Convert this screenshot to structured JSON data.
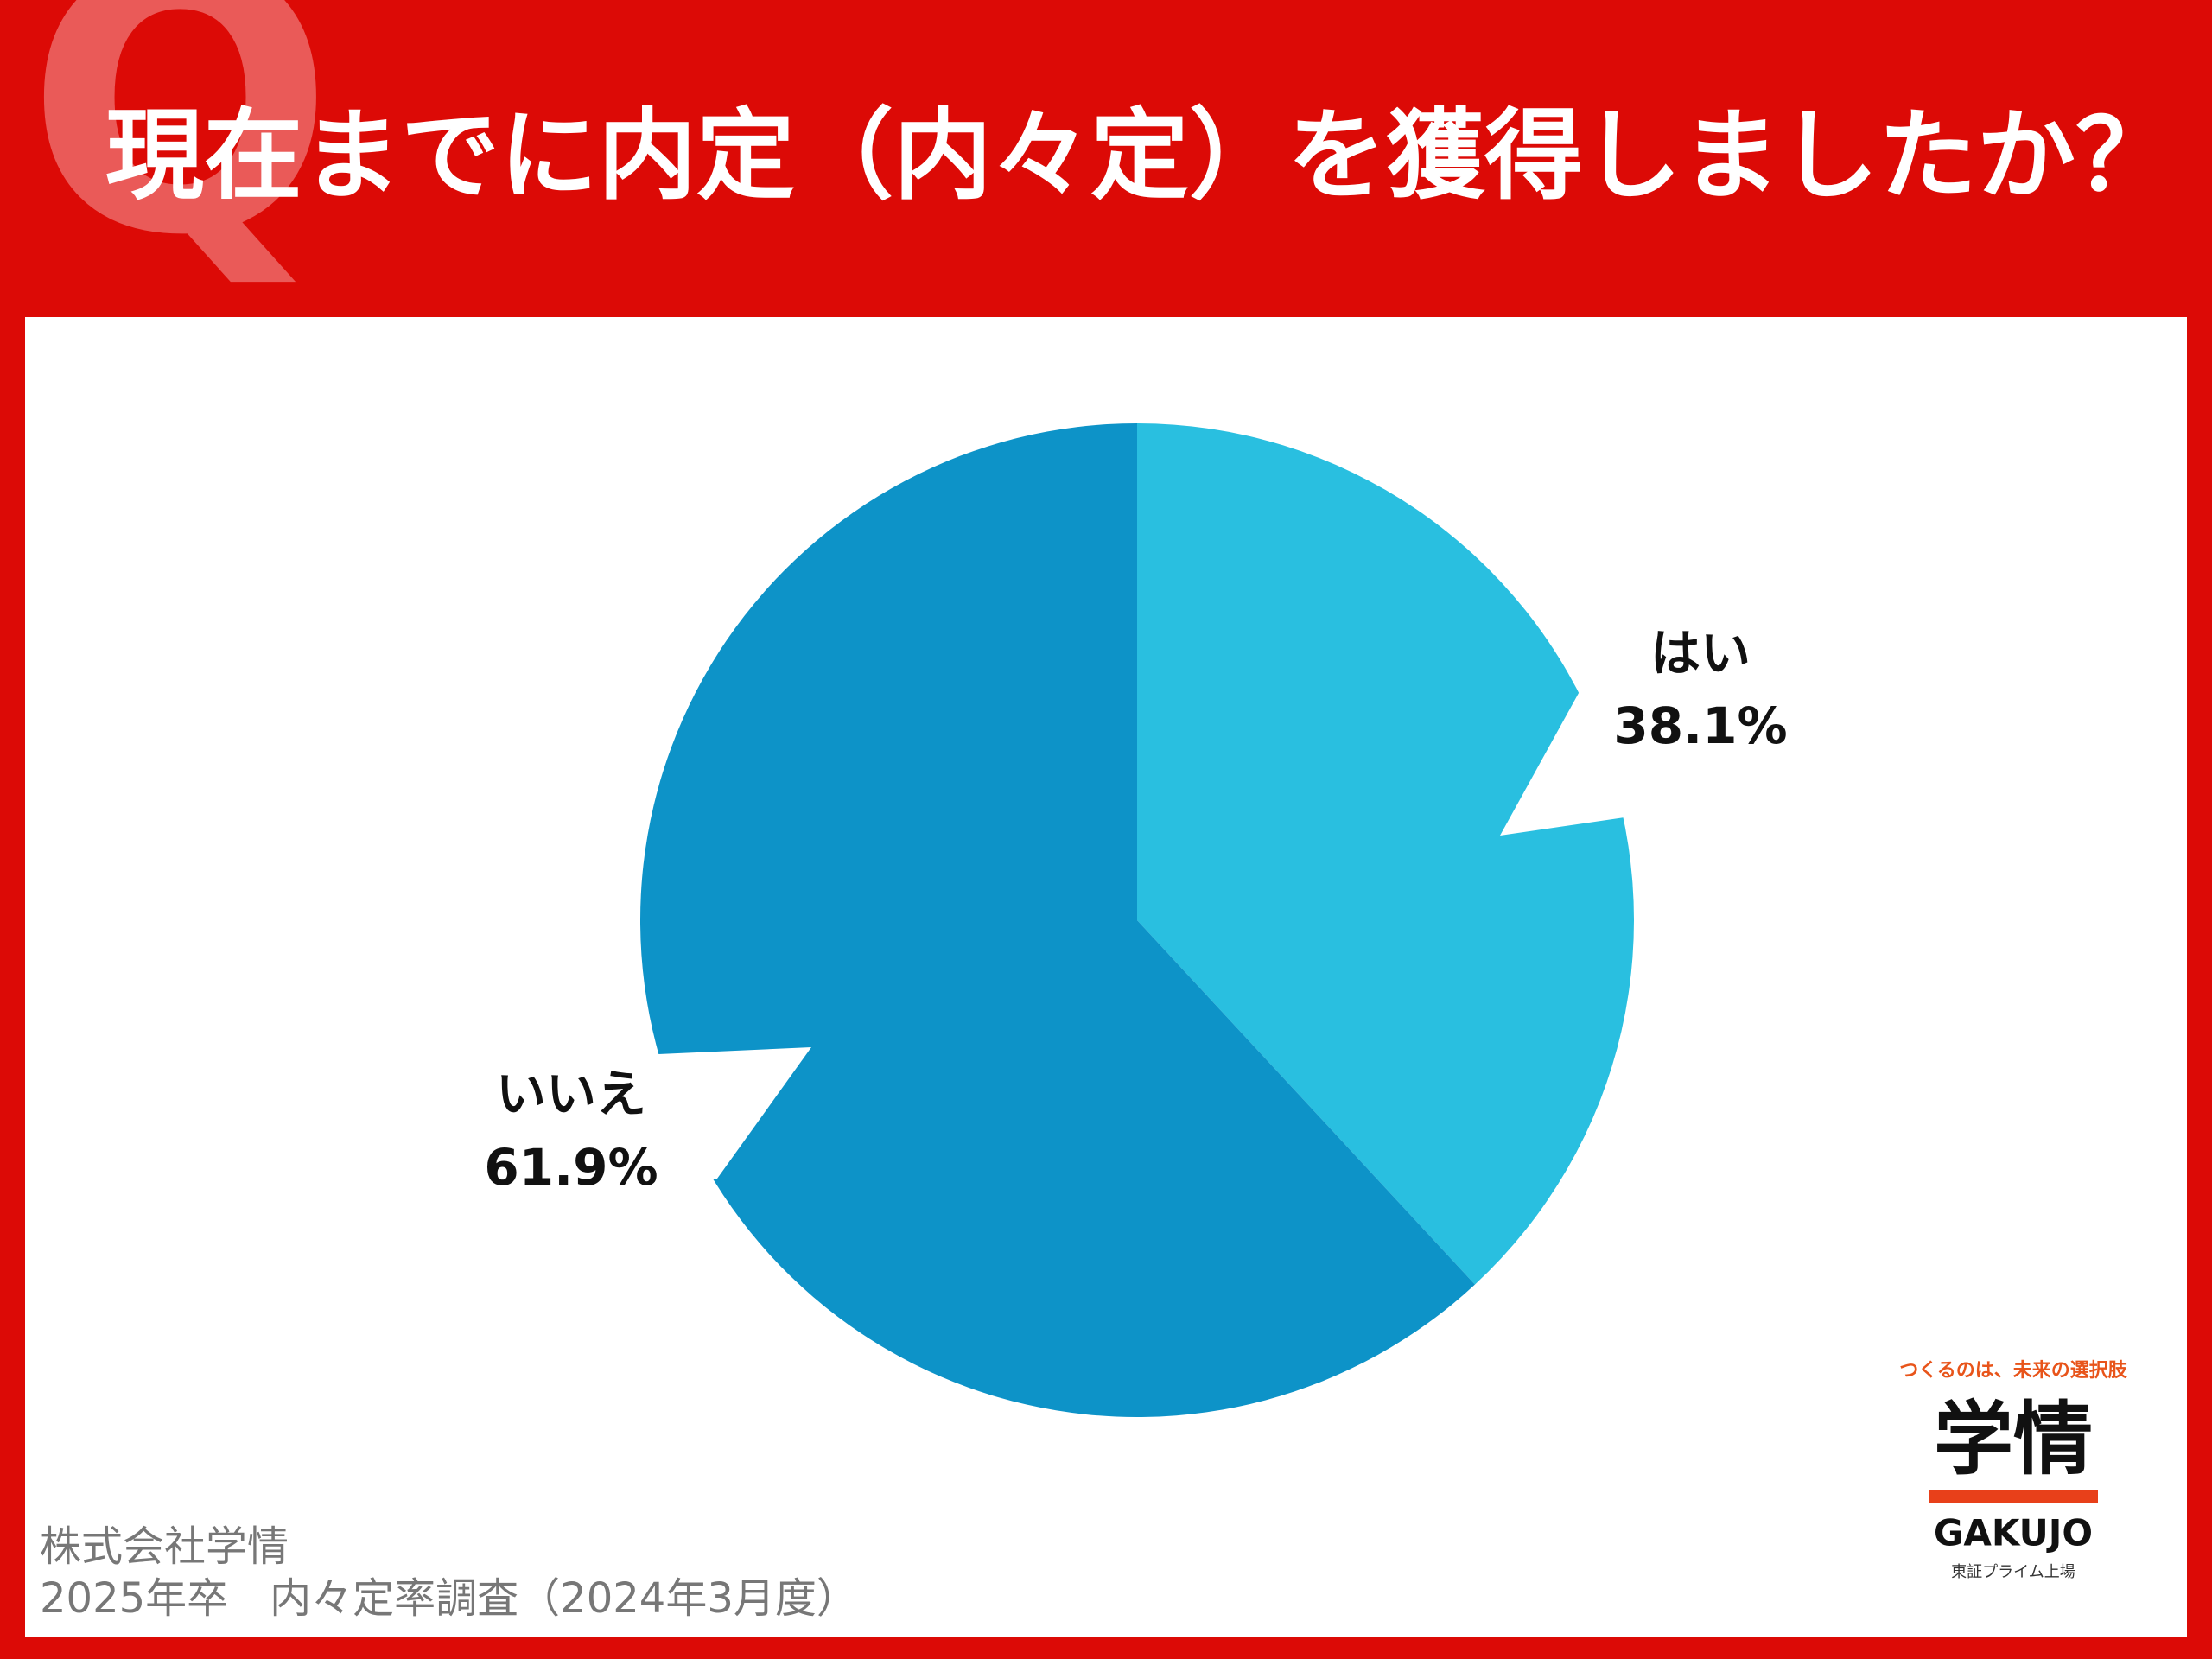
{
  "chart_data": {
    "type": "pie",
    "title": "現在までに内定（内々定）を獲得しましたか？",
    "q_mark": "Q",
    "categories": [
      "はい",
      "いいえ"
    ],
    "values": [
      38.1,
      61.9
    ],
    "value_labels": [
      "38.1%",
      "61.9%"
    ],
    "colors": [
      "#29bfe0",
      "#0d93c8"
    ],
    "source": [
      "株式会社学情",
      "2025年卒　内々定率調査（2024年3月度）"
    ],
    "logo": {
      "tagline": "つくるのは、未来の選択肢",
      "name": "学情",
      "roman": "GAKUJO",
      "note": "東証プライム上場"
    }
  }
}
